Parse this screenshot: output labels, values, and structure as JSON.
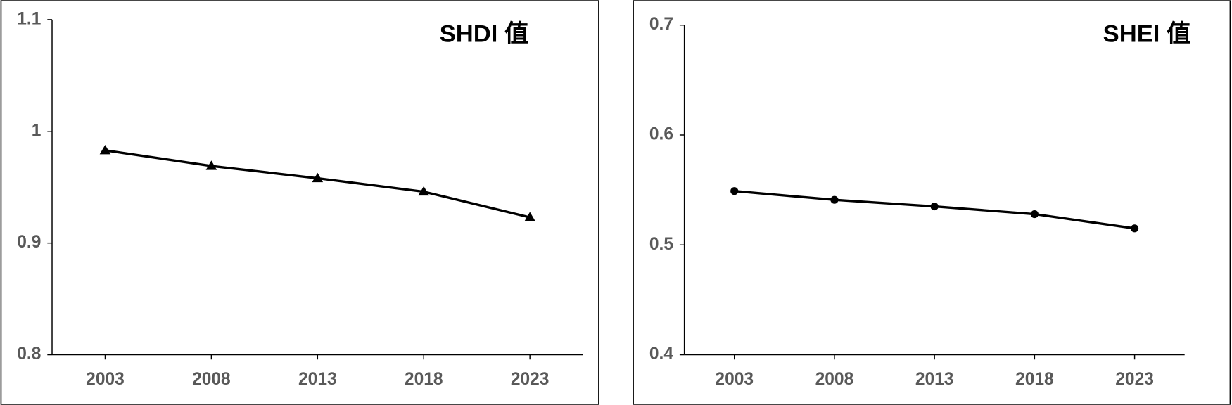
{
  "chart_data": [
    {
      "type": "line",
      "title": "SHDI 值",
      "categories": [
        "2003",
        "2008",
        "2013",
        "2018",
        "2023"
      ],
      "values": [
        0.983,
        0.969,
        0.958,
        0.946,
        0.923
      ],
      "color": "#000000",
      "marker": "triangle",
      "ylim": [
        0.8,
        1.1
      ],
      "yticks": [
        0.8,
        0.9,
        1,
        1.1
      ]
    },
    {
      "type": "line",
      "title": "SHEI 值",
      "categories": [
        "2003",
        "2008",
        "2013",
        "2018",
        "2023"
      ],
      "values": [
        0.549,
        0.541,
        0.535,
        0.528,
        0.515
      ],
      "color": "#000000",
      "marker": "circle",
      "ylim": [
        0.4,
        0.7
      ],
      "yticks": [
        0.4,
        0.5,
        0.6,
        0.7
      ]
    }
  ]
}
